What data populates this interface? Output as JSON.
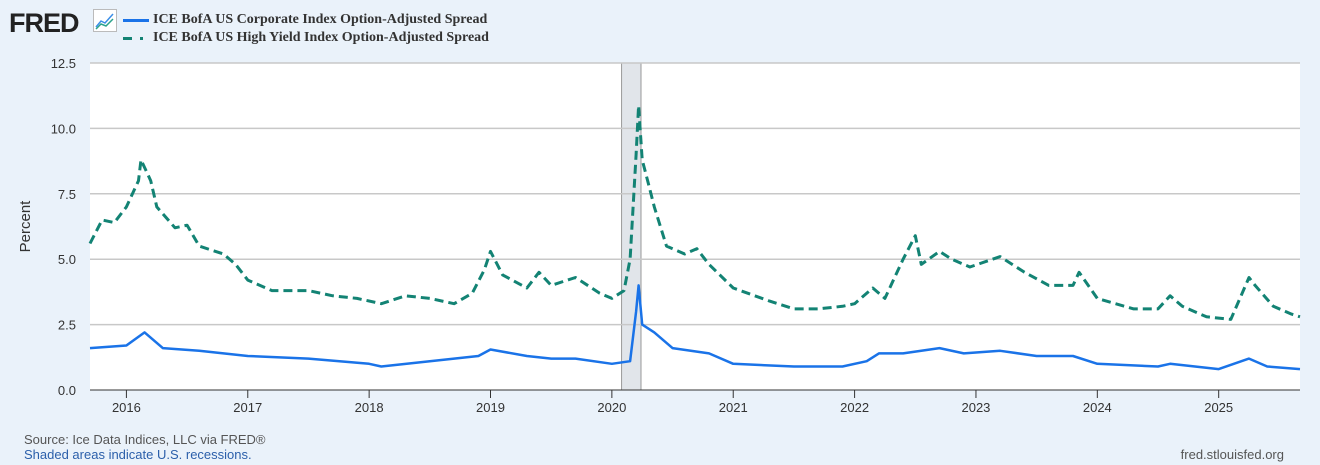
{
  "header": {
    "logo": "FRED",
    "logo_icon": "chart-line-icon"
  },
  "footer": {
    "source": "Source: Ice Data Indices, LLC via FRED®",
    "recession_note": "Shaded areas indicate U.S. recessions.",
    "url": "fred.stlouisfed.org"
  },
  "chart_data": {
    "type": "line",
    "title": "",
    "xlabel": "",
    "ylabel": "Percent",
    "xlim": [
      2015.7,
      2025.67
    ],
    "ylim": [
      0,
      12.5
    ],
    "grid": true,
    "legend_position": "top-left",
    "x_ticks": [
      "2016",
      "2017",
      "2018",
      "2019",
      "2020",
      "2021",
      "2022",
      "2023",
      "2024",
      "2025"
    ],
    "y_ticks": [
      "0.0",
      "2.5",
      "5.0",
      "7.5",
      "10.0",
      "12.5"
    ],
    "recessions": [
      [
        2020.08,
        2020.24
      ]
    ],
    "series": [
      {
        "name": "ICE BofA US Corporate Index Option-Adjusted Spread",
        "color": "#1a73e8",
        "style": "solid",
        "points": [
          [
            2015.7,
            1.6
          ],
          [
            2016.0,
            1.7
          ],
          [
            2016.15,
            2.2
          ],
          [
            2016.3,
            1.6
          ],
          [
            2016.6,
            1.5
          ],
          [
            2017.0,
            1.3
          ],
          [
            2017.5,
            1.2
          ],
          [
            2018.0,
            1.0
          ],
          [
            2018.1,
            0.9
          ],
          [
            2018.5,
            1.1
          ],
          [
            2018.9,
            1.3
          ],
          [
            2019.0,
            1.55
          ],
          [
            2019.3,
            1.3
          ],
          [
            2019.5,
            1.2
          ],
          [
            2019.7,
            1.2
          ],
          [
            2020.0,
            1.0
          ],
          [
            2020.15,
            1.1
          ],
          [
            2020.2,
            3.0
          ],
          [
            2020.22,
            4.0
          ],
          [
            2020.25,
            2.5
          ],
          [
            2020.35,
            2.2
          ],
          [
            2020.5,
            1.6
          ],
          [
            2020.8,
            1.4
          ],
          [
            2021.0,
            1.0
          ],
          [
            2021.5,
            0.9
          ],
          [
            2021.9,
            0.9
          ],
          [
            2022.1,
            1.1
          ],
          [
            2022.2,
            1.4
          ],
          [
            2022.4,
            1.4
          ],
          [
            2022.7,
            1.6
          ],
          [
            2022.9,
            1.4
          ],
          [
            2023.2,
            1.5
          ],
          [
            2023.5,
            1.3
          ],
          [
            2023.8,
            1.3
          ],
          [
            2024.0,
            1.0
          ],
          [
            2024.5,
            0.9
          ],
          [
            2024.6,
            1.0
          ],
          [
            2025.0,
            0.8
          ],
          [
            2025.25,
            1.2
          ],
          [
            2025.4,
            0.9
          ],
          [
            2025.67,
            0.8
          ]
        ]
      },
      {
        "name": "ICE BofA US High Yield Index Option-Adjusted Spread",
        "color": "#138374",
        "style": "dashed",
        "points": [
          [
            2015.7,
            5.6
          ],
          [
            2015.8,
            6.5
          ],
          [
            2015.9,
            6.4
          ],
          [
            2016.0,
            7.0
          ],
          [
            2016.1,
            8.0
          ],
          [
            2016.12,
            8.8
          ],
          [
            2016.2,
            8.0
          ],
          [
            2016.25,
            7.0
          ],
          [
            2016.4,
            6.2
          ],
          [
            2016.5,
            6.3
          ],
          [
            2016.6,
            5.5
          ],
          [
            2016.8,
            5.2
          ],
          [
            2016.9,
            4.8
          ],
          [
            2017.0,
            4.2
          ],
          [
            2017.2,
            3.8
          ],
          [
            2017.5,
            3.8
          ],
          [
            2017.7,
            3.6
          ],
          [
            2017.9,
            3.5
          ],
          [
            2018.1,
            3.3
          ],
          [
            2018.3,
            3.6
          ],
          [
            2018.5,
            3.5
          ],
          [
            2018.7,
            3.3
          ],
          [
            2018.85,
            3.7
          ],
          [
            2018.95,
            4.6
          ],
          [
            2019.0,
            5.3
          ],
          [
            2019.1,
            4.4
          ],
          [
            2019.3,
            3.9
          ],
          [
            2019.4,
            4.5
          ],
          [
            2019.5,
            4.0
          ],
          [
            2019.7,
            4.3
          ],
          [
            2019.9,
            3.7
          ],
          [
            2020.0,
            3.5
          ],
          [
            2020.1,
            3.8
          ],
          [
            2020.15,
            5.0
          ],
          [
            2020.2,
            9.0
          ],
          [
            2020.22,
            10.87
          ],
          [
            2020.25,
            8.8
          ],
          [
            2020.3,
            7.9
          ],
          [
            2020.35,
            7.0
          ],
          [
            2020.45,
            5.5
          ],
          [
            2020.6,
            5.2
          ],
          [
            2020.7,
            5.4
          ],
          [
            2020.8,
            4.8
          ],
          [
            2021.0,
            3.9
          ],
          [
            2021.3,
            3.4
          ],
          [
            2021.5,
            3.1
          ],
          [
            2021.7,
            3.1
          ],
          [
            2021.9,
            3.2
          ],
          [
            2022.0,
            3.3
          ],
          [
            2022.15,
            3.9
          ],
          [
            2022.25,
            3.5
          ],
          [
            2022.4,
            5.0
          ],
          [
            2022.5,
            5.9
          ],
          [
            2022.55,
            4.8
          ],
          [
            2022.7,
            5.3
          ],
          [
            2022.8,
            5.0
          ],
          [
            2022.95,
            4.7
          ],
          [
            2023.2,
            5.1
          ],
          [
            2023.4,
            4.5
          ],
          [
            2023.6,
            4.0
          ],
          [
            2023.8,
            4.0
          ],
          [
            2023.85,
            4.5
          ],
          [
            2024.0,
            3.5
          ],
          [
            2024.3,
            3.1
          ],
          [
            2024.5,
            3.1
          ],
          [
            2024.6,
            3.6
          ],
          [
            2024.7,
            3.2
          ],
          [
            2024.9,
            2.8
          ],
          [
            2025.1,
            2.7
          ],
          [
            2025.25,
            4.3
          ],
          [
            2025.3,
            4.0
          ],
          [
            2025.45,
            3.2
          ],
          [
            2025.6,
            2.9
          ],
          [
            2025.67,
            2.8
          ]
        ]
      }
    ]
  }
}
